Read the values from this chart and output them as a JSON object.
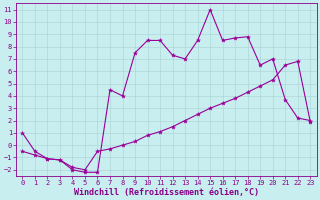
{
  "xlabel": "Windchill (Refroidissement éolien,°C)",
  "background_color": "#c8eef0",
  "line_color": "#990099",
  "xlim": [
    -0.5,
    23.5
  ],
  "ylim": [
    -2.5,
    11.5
  ],
  "yticks": [
    -2,
    -1,
    0,
    1,
    2,
    3,
    4,
    5,
    6,
    7,
    8,
    9,
    10,
    11
  ],
  "xticks": [
    0,
    1,
    2,
    3,
    4,
    5,
    6,
    7,
    8,
    9,
    10,
    11,
    12,
    13,
    14,
    15,
    16,
    17,
    18,
    19,
    20,
    21,
    22,
    23
  ],
  "upper_x": [
    0,
    1,
    2,
    3,
    4,
    5,
    6,
    7,
    8,
    9,
    10,
    11,
    12,
    13,
    14,
    15,
    16,
    17,
    18,
    19,
    20,
    21,
    22,
    23
  ],
  "upper_y": [
    1.0,
    -0.5,
    -1.1,
    -1.2,
    -2.0,
    -2.2,
    -2.2,
    4.5,
    4.0,
    7.5,
    8.5,
    8.5,
    7.3,
    7.0,
    8.5,
    11.0,
    8.5,
    8.7,
    8.8,
    6.5,
    7.0,
    3.7,
    2.2,
    2.0
  ],
  "lower_x": [
    0,
    1,
    2,
    3,
    4,
    5,
    6,
    7,
    8,
    9,
    10,
    11,
    12,
    13,
    14,
    15,
    16,
    17,
    18,
    19,
    20,
    21,
    22,
    23
  ],
  "lower_y": [
    -0.5,
    -0.8,
    -1.1,
    -1.2,
    -1.8,
    -2.0,
    -0.5,
    -0.3,
    0.0,
    0.3,
    0.8,
    1.1,
    1.5,
    2.0,
    2.5,
    3.0,
    3.4,
    3.8,
    4.3,
    4.8,
    5.3,
    6.5,
    6.8,
    1.9
  ],
  "grid_color": "#b0d8d8",
  "tick_color": "#880088",
  "spine_color": "#880088",
  "xlabel_fontsize": 6.0,
  "tick_fontsize": 5.0,
  "linewidth": 0.8,
  "markersize": 3.0
}
